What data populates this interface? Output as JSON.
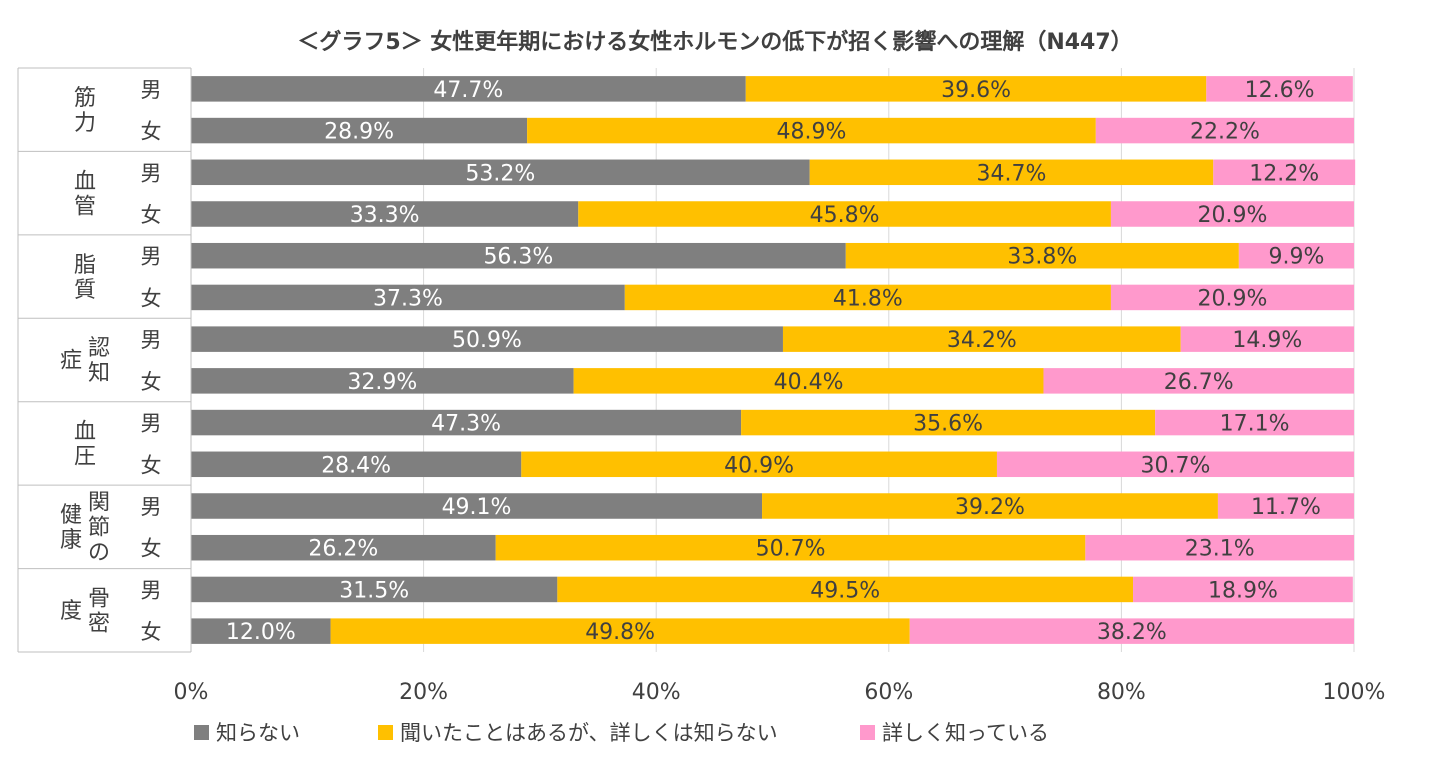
{
  "chart_data": {
    "type": "bar",
    "orientation": "horizontal",
    "stacked": true,
    "title": "＜グラフ5＞ 女性更年期における女性ホルモンの低下が招く影響への理解（N447）",
    "xlim": [
      0,
      100
    ],
    "x_ticks": [
      "0%",
      "20%",
      "40%",
      "60%",
      "80%",
      "100%"
    ],
    "grid": true,
    "legend_position": "bottom-left",
    "groups": [
      {
        "label": "筋力",
        "rows": [
          "男",
          "女"
        ]
      },
      {
        "label": "血管",
        "rows": [
          "男",
          "女"
        ]
      },
      {
        "label": "脂質",
        "rows": [
          "男",
          "女"
        ]
      },
      {
        "label": "認知症",
        "rows": [
          "男",
          "女"
        ]
      },
      {
        "label": "血圧",
        "rows": [
          "男",
          "女"
        ]
      },
      {
        "label": "関節の健康",
        "rows": [
          "男",
          "女"
        ]
      },
      {
        "label": "骨密度",
        "rows": [
          "男",
          "女"
        ]
      }
    ],
    "series": [
      {
        "name": "知らない",
        "color": "#7f7f7f",
        "label_color": "#ffffff",
        "values": [
          47.7,
          28.9,
          53.2,
          33.3,
          56.3,
          37.3,
          50.9,
          32.9,
          47.3,
          28.4,
          49.1,
          26.2,
          31.5,
          12.0
        ],
        "labels": [
          "47.7%",
          "28.9%",
          "53.2%",
          "33.3%",
          "56.3%",
          "37.3%",
          "50.9%",
          "32.9%",
          "47.3%",
          "28.4%",
          "49.1%",
          "26.2%",
          "31.5%",
          "12.0%"
        ]
      },
      {
        "name": "聞いたことはあるが、詳しくは知らない",
        "color": "#ffc000",
        "label_color": "#404040",
        "values": [
          39.6,
          48.9,
          34.7,
          45.8,
          33.8,
          41.8,
          34.2,
          40.4,
          35.6,
          40.9,
          39.2,
          50.7,
          49.5,
          49.8
        ],
        "labels": [
          "39.6%",
          "48.9%",
          "34.7%",
          "45.8%",
          "33.8%",
          "41.8%",
          "34.2%",
          "40.4%",
          "35.6%",
          "40.9%",
          "39.2%",
          "50.7%",
          "49.5%",
          "49.8%"
        ]
      },
      {
        "name": "詳しく知っている",
        "color": "#ff99cc",
        "label_color": "#404040",
        "values": [
          12.6,
          22.2,
          12.2,
          20.9,
          9.9,
          20.9,
          14.9,
          26.7,
          17.1,
          30.7,
          11.7,
          23.1,
          18.9,
          38.2
        ],
        "labels": [
          "12.6%",
          "22.2%",
          "12.2%",
          "20.9%",
          "9.9%",
          "20.9%",
          "14.9%",
          "26.7%",
          "17.1%",
          "30.7%",
          "11.7%",
          "23.1%",
          "18.9%",
          "38.2%"
        ]
      }
    ],
    "colors": {
      "gridline": "#d9d9d9",
      "axis": "#bfbfbf",
      "text": "#404040"
    }
  }
}
